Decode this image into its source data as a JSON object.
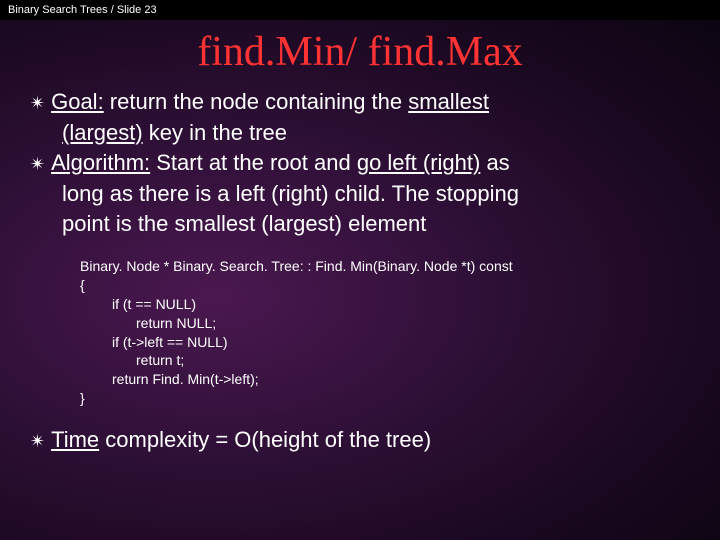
{
  "header": {
    "text": "Binary Search Trees / Slide 23"
  },
  "title": {
    "text": "find.Min/ find.Max"
  },
  "bullets": {
    "goal": {
      "label": "Goal:",
      "text1": " return the node containing the ",
      "smallest": "smallest",
      "cont1a": "(largest)",
      "cont1b": " key in the tree"
    },
    "algo": {
      "label": "Algorithm:",
      "text1": " Start at the root and ",
      "goleft": "go left (right)",
      "text2": " as",
      "cont1": "long as there is a left (right) child. The stopping",
      "cont2": "point is the smallest (largest) element"
    },
    "time": {
      "label": "Time",
      "text": " complexity = O(height of the tree)"
    }
  },
  "code": {
    "l1": "Binary. Node * Binary. Search. Tree: : Find. Min(Binary. Node *t) const",
    "l2": "{",
    "l3": "if (t == NULL)",
    "l4": "return NULL;",
    "l5": "if (t->left == NULL)",
    "l6": "return t;",
    "l7": "return Find. Min(t->left);",
    "l8": "}"
  },
  "colors": {
    "title": "#ff3333",
    "text": "#ffffff",
    "header_bg": "#000000"
  }
}
